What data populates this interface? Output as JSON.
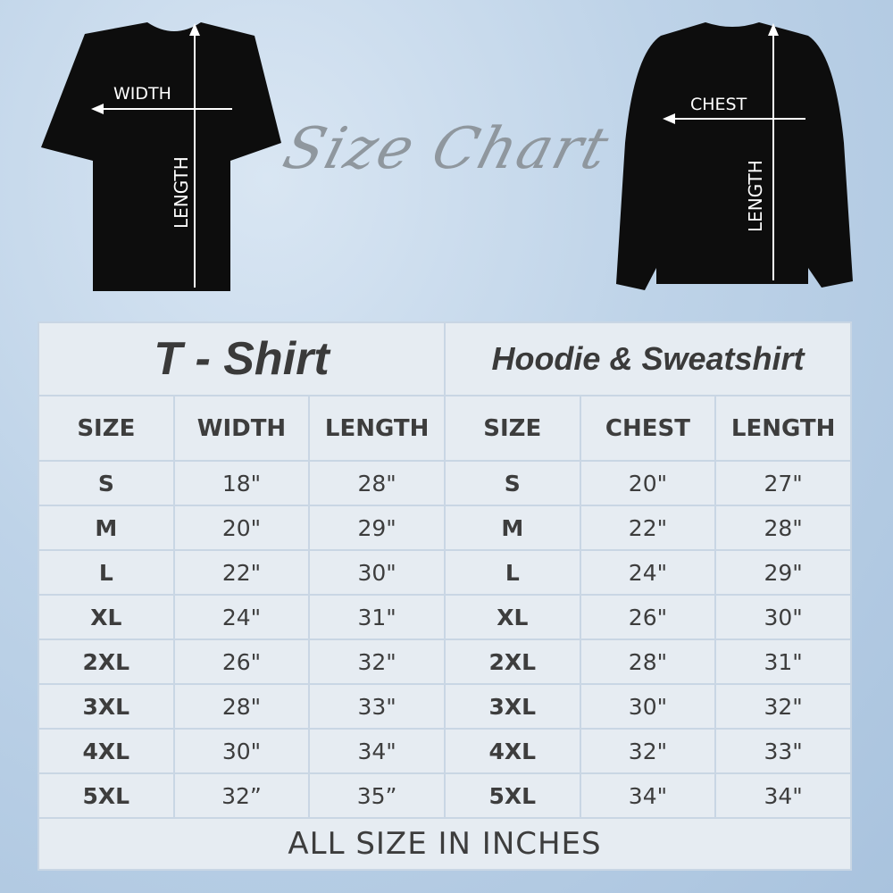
{
  "title": "Size Chart",
  "tshirt_image": {
    "width_label": "WIDTH",
    "length_label": "LENGTH"
  },
  "hoodie_image": {
    "chest_label": "CHEST",
    "length_label": "LENGTH"
  },
  "table": {
    "tshirt": {
      "title": "T - Shirt",
      "headers": [
        "SIZE",
        "WIDTH",
        "LENGTH"
      ],
      "rows": [
        [
          "S",
          "18\"",
          "28\""
        ],
        [
          "M",
          "20\"",
          "29\""
        ],
        [
          "L",
          "22\"",
          "30\""
        ],
        [
          "XL",
          "24\"",
          "31\""
        ],
        [
          "2XL",
          "26\"",
          "32\""
        ],
        [
          "3XL",
          "28\"",
          "33\""
        ],
        [
          "4XL",
          "30\"",
          "34\""
        ],
        [
          "5XL",
          "32”",
          "35”"
        ]
      ]
    },
    "hoodie": {
      "title": "Hoodie & Sweatshirt",
      "headers": [
        "SIZE",
        "CHEST",
        "LENGTH"
      ],
      "rows": [
        [
          "S",
          "20\"",
          "27\""
        ],
        [
          "M",
          "22\"",
          "28\""
        ],
        [
          "L",
          "24\"",
          "29\""
        ],
        [
          "XL",
          "26\"",
          "30\""
        ],
        [
          "2XL",
          "28\"",
          "31\""
        ],
        [
          "3XL",
          "30\"",
          "32\""
        ],
        [
          "4XL",
          "32\"",
          "33\""
        ],
        [
          "5XL",
          "34\"",
          "34\""
        ]
      ]
    },
    "footer": "ALL SIZE IN INCHES"
  },
  "colors": {
    "cell_bg": "#e6ecf2",
    "border": "#c9d6e4",
    "text": "#3d3d3d",
    "garment": "#0d0d0d"
  }
}
